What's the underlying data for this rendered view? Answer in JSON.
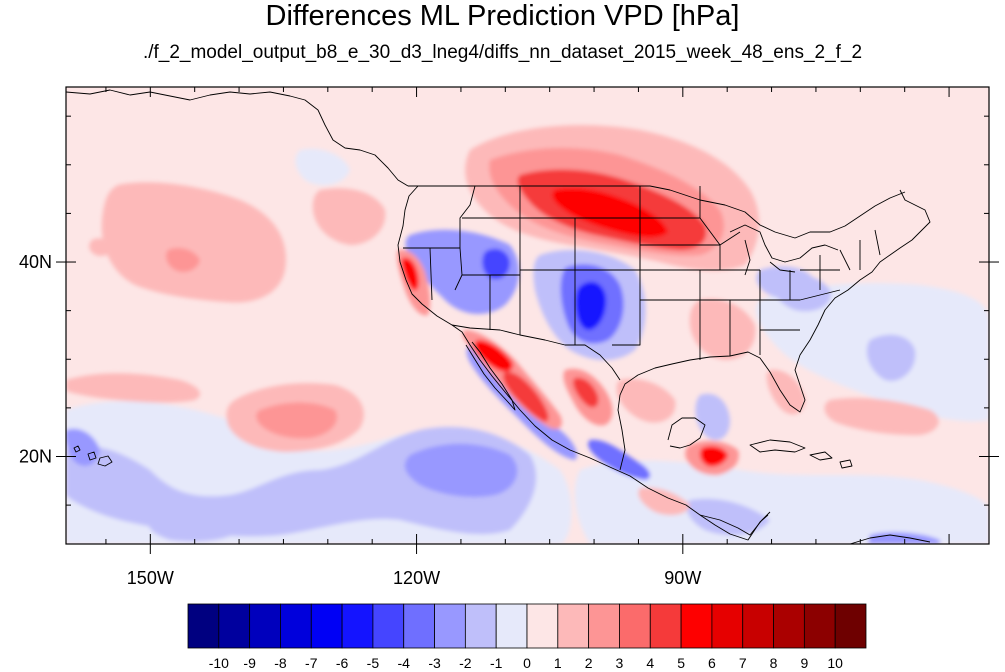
{
  "title": "Differences ML Prediction VPD [hPa]",
  "subtitle": "./f_2_model_output_b8_e_30_d3_lneg4/diffs_nn_dataset_2015_week_48_ens_2_f_2",
  "map": {
    "lon_range": [
      -159.5,
      -55.5
    ],
    "lat_range": [
      11,
      58
    ],
    "x_ticks": [
      {
        "lon": -150,
        "label": "150W"
      },
      {
        "lon": -120,
        "label": "120W"
      },
      {
        "lon": -90,
        "label": "90W"
      }
    ],
    "y_ticks": [
      {
        "lat": 40,
        "label": "40N"
      },
      {
        "lat": 20,
        "label": "20N"
      }
    ]
  },
  "colorbar": {
    "levels": [
      "-10",
      "-9",
      "-8",
      "-7",
      "-6",
      "-5",
      "-4",
      "-3",
      "-2",
      "-1",
      "0",
      "1",
      "2",
      "3",
      "4",
      "5",
      "6",
      "7",
      "8",
      "9",
      "10"
    ],
    "colors": [
      "#000080",
      "#00009e",
      "#0000bd",
      "#0000dc",
      "#0000f5",
      "#1414ff",
      "#4545ff",
      "#6f6fff",
      "#9898ff",
      "#bfbffa",
      "#e6e9fa",
      "#fde6e6",
      "#fdb9b9",
      "#fd9595",
      "#fb6b6b",
      "#f53a3a",
      "#fe0000",
      "#e60000",
      "#c80000",
      "#aa0000",
      "#8c0000",
      "#6e0000"
    ]
  }
}
